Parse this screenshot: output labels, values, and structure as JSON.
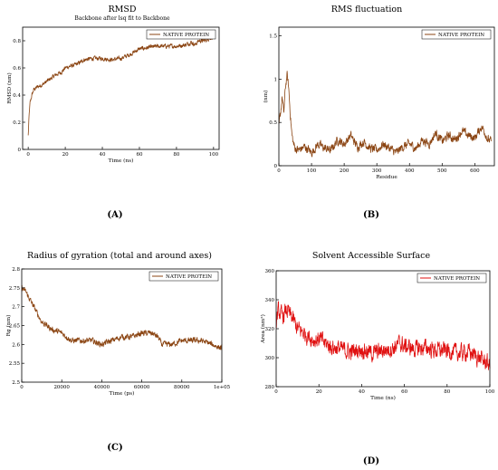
{
  "chart_data": [
    {
      "id": "A",
      "type": "line",
      "panel_label": "(A)",
      "title": "RMSD",
      "subtitle": "Backbone after lsq fit to Backbone",
      "xlabel": "Time (ns)",
      "ylabel": "RMSD (nm)",
      "xlim": [
        -3,
        103
      ],
      "ylim": [
        0,
        0.9
      ],
      "xticks": [
        0,
        20,
        40,
        60,
        80,
        100
      ],
      "yticks": [
        0,
        0.2,
        0.4,
        0.6,
        0.8
      ],
      "ytick_labels": [
        "0",
        "0.2",
        "0.4",
        "0.6",
        "0.8"
      ],
      "grid": false,
      "legend": "top-right",
      "noise": 0.012,
      "series": [
        {
          "name": "NATIVE PROTEIN",
          "color": "#8b4513",
          "x": [
            0,
            0.5,
            1,
            2,
            3,
            5,
            8,
            10,
            12,
            15,
            18,
            20,
            22,
            25,
            28,
            30,
            35,
            40,
            45,
            50,
            55,
            60,
            65,
            70,
            75,
            80,
            85,
            88,
            90,
            92,
            95,
            98,
            100
          ],
          "y": [
            0.1,
            0.25,
            0.34,
            0.4,
            0.44,
            0.46,
            0.48,
            0.5,
            0.52,
            0.55,
            0.57,
            0.6,
            0.61,
            0.62,
            0.64,
            0.66,
            0.67,
            0.67,
            0.66,
            0.67,
            0.7,
            0.74,
            0.75,
            0.76,
            0.76,
            0.76,
            0.77,
            0.79,
            0.77,
            0.8,
            0.8,
            0.82,
            0.83
          ]
        }
      ]
    },
    {
      "id": "B",
      "type": "line",
      "panel_label": "(B)",
      "title": "RMS fluctuation",
      "xlabel": "Residue",
      "ylabel": "(nm)",
      "xlim": [
        0,
        660
      ],
      "ylim": [
        0,
        1.6
      ],
      "xticks": [
        0,
        100,
        200,
        300,
        400,
        500,
        600
      ],
      "yticks": [
        0,
        0.5,
        1,
        1.5
      ],
      "ytick_labels": [
        "0",
        "0.5",
        "1",
        "1.5"
      ],
      "grid": false,
      "legend": "top-right",
      "noise": 0.04,
      "series": [
        {
          "name": "NATIVE PROTEIN",
          "color": "#8b4513",
          "x": [
            0,
            5,
            10,
            15,
            20,
            25,
            30,
            35,
            40,
            45,
            50,
            60,
            80,
            100,
            120,
            140,
            160,
            180,
            200,
            220,
            240,
            260,
            280,
            300,
            320,
            340,
            360,
            380,
            400,
            420,
            440,
            460,
            480,
            500,
            520,
            540,
            560,
            580,
            600,
            620,
            630,
            640,
            650
          ],
          "y": [
            0.45,
            0.6,
            0.8,
            0.6,
            0.9,
            1.05,
            0.9,
            0.6,
            0.35,
            0.25,
            0.2,
            0.18,
            0.22,
            0.15,
            0.25,
            0.2,
            0.18,
            0.3,
            0.25,
            0.35,
            0.22,
            0.28,
            0.2,
            0.18,
            0.25,
            0.2,
            0.15,
            0.22,
            0.25,
            0.2,
            0.3,
            0.25,
            0.38,
            0.28,
            0.35,
            0.3,
            0.4,
            0.35,
            0.32,
            0.45,
            0.4,
            0.3,
            0.28
          ]
        }
      ]
    },
    {
      "id": "C",
      "type": "line",
      "panel_label": "(C)",
      "title": "Radius of gyration (total and around axes)",
      "xlabel": "Time (ps)",
      "ylabel": "Rg (nm)",
      "xlim": [
        0,
        100000
      ],
      "ylim": [
        2.5,
        2.8
      ],
      "xticks": [
        0,
        20000,
        40000,
        60000,
        80000,
        100000
      ],
      "xtick_labels": [
        "0",
        "20000",
        "40000",
        "60000",
        "80000",
        "1e+05"
      ],
      "yticks": [
        2.5,
        2.55,
        2.6,
        2.65,
        2.7,
        2.75,
        2.8
      ],
      "ytick_labels": [
        "2.5",
        "2.55",
        "2.6",
        "2.65",
        "2.7",
        "2.75",
        "2.8"
      ],
      "grid": false,
      "legend": "top-right",
      "noise": 0.006,
      "series": [
        {
          "name": "NATIVE PROTEIN",
          "color": "#8b4513",
          "x": [
            0,
            2000,
            5000,
            8000,
            10000,
            15000,
            20000,
            25000,
            30000,
            35000,
            40000,
            45000,
            50000,
            55000,
            60000,
            65000,
            68000,
            70000,
            75000,
            80000,
            85000,
            90000,
            95000,
            100000
          ],
          "y": [
            2.75,
            2.74,
            2.71,
            2.68,
            2.66,
            2.64,
            2.63,
            2.61,
            2.61,
            2.61,
            2.6,
            2.61,
            2.62,
            2.62,
            2.63,
            2.63,
            2.62,
            2.6,
            2.6,
            2.61,
            2.61,
            2.61,
            2.6,
            2.59
          ]
        }
      ]
    },
    {
      "id": "D",
      "type": "line",
      "panel_label": "(D)",
      "title": "Solvent Accessible Surface",
      "xlabel": "Time (ns)",
      "ylabel": "Area (nm²)",
      "xlim": [
        0,
        100
      ],
      "ylim": [
        280,
        360
      ],
      "xticks": [
        0,
        20,
        40,
        60,
        80,
        100
      ],
      "yticks": [
        280,
        300,
        320,
        340,
        360
      ],
      "ytick_labels": [
        "280",
        "300",
        "320",
        "340",
        "360"
      ],
      "grid": false,
      "legend": "top-right",
      "noise": 4.5,
      "series": [
        {
          "name": "NATIVE PROTEIN",
          "color": "#e01010",
          "x": [
            0,
            1,
            3,
            5,
            8,
            10,
            12,
            15,
            18,
            20,
            25,
            30,
            35,
            40,
            45,
            50,
            55,
            58,
            60,
            65,
            70,
            75,
            80,
            85,
            90,
            95,
            100
          ],
          "y": [
            325,
            332,
            328,
            333,
            326,
            320,
            318,
            315,
            312,
            313,
            308,
            306,
            304,
            306,
            303,
            305,
            307,
            310,
            308,
            306,
            307,
            305,
            305,
            303,
            304,
            300,
            295
          ]
        }
      ]
    }
  ]
}
